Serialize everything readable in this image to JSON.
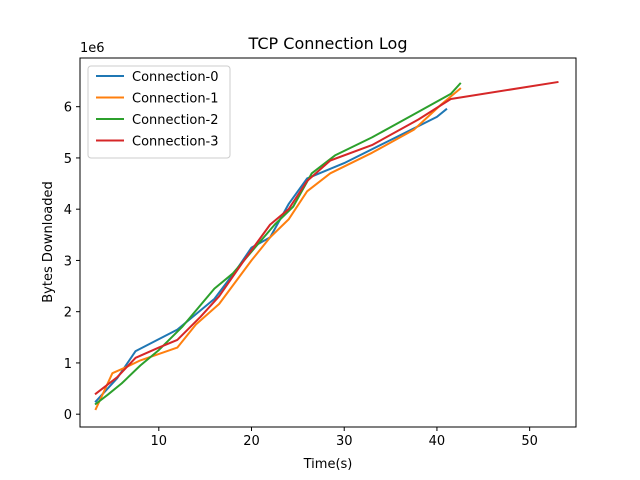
{
  "chart_data": {
    "type": "line",
    "title": "TCP Connection Log",
    "xlabel": "Time(s)",
    "ylabel": "Bytes Downloaded",
    "y_offset_label": "1e6",
    "xlim": [
      1.5,
      55
    ],
    "ylim": [
      -0.25,
      6.95
    ],
    "x_ticks": [
      10,
      20,
      30,
      40,
      50
    ],
    "y_ticks": [
      0,
      1,
      2,
      3,
      4,
      5,
      6
    ],
    "grid": false,
    "legend_position": "top-left",
    "series": [
      {
        "name": "Connection-0",
        "color": "#1f77b4",
        "points": [
          [
            3.2,
            0.25
          ],
          [
            5.5,
            0.7
          ],
          [
            7.5,
            1.23
          ],
          [
            12.0,
            1.65
          ],
          [
            16.0,
            2.25
          ],
          [
            18.5,
            2.85
          ],
          [
            20.0,
            3.25
          ],
          [
            22.0,
            3.45
          ],
          [
            24.0,
            4.1
          ],
          [
            26.0,
            4.6
          ],
          [
            30.0,
            4.9
          ],
          [
            35.0,
            5.35
          ],
          [
            40.0,
            5.8
          ],
          [
            41.0,
            5.95
          ]
        ]
      },
      {
        "name": "Connection-1",
        "color": "#ff7f0e",
        "points": [
          [
            3.2,
            0.1
          ],
          [
            5.0,
            0.8
          ],
          [
            6.5,
            0.92
          ],
          [
            8.0,
            1.05
          ],
          [
            12.0,
            1.3
          ],
          [
            14.0,
            1.75
          ],
          [
            16.5,
            2.15
          ],
          [
            20.0,
            3.0
          ],
          [
            22.0,
            3.45
          ],
          [
            24.0,
            3.8
          ],
          [
            26.0,
            4.35
          ],
          [
            28.5,
            4.7
          ],
          [
            33.0,
            5.1
          ],
          [
            37.5,
            5.55
          ],
          [
            40.5,
            6.05
          ],
          [
            42.5,
            6.35
          ]
        ]
      },
      {
        "name": "Connection-2",
        "color": "#2ca02c",
        "points": [
          [
            3.2,
            0.2
          ],
          [
            4.5,
            0.38
          ],
          [
            6.0,
            0.6
          ],
          [
            8.0,
            0.95
          ],
          [
            10.0,
            1.25
          ],
          [
            12.5,
            1.7
          ],
          [
            16.0,
            2.45
          ],
          [
            18.0,
            2.75
          ],
          [
            22.5,
            3.7
          ],
          [
            24.5,
            4.05
          ],
          [
            26.5,
            4.7
          ],
          [
            29.0,
            5.05
          ],
          [
            33.0,
            5.4
          ],
          [
            37.5,
            5.85
          ],
          [
            41.5,
            6.25
          ],
          [
            42.5,
            6.45
          ]
        ]
      },
      {
        "name": "Connection-3",
        "color": "#d62728",
        "points": [
          [
            3.2,
            0.4
          ],
          [
            5.5,
            0.72
          ],
          [
            7.5,
            1.1
          ],
          [
            10.0,
            1.3
          ],
          [
            12.0,
            1.45
          ],
          [
            14.5,
            1.9
          ],
          [
            16.5,
            2.3
          ],
          [
            19.0,
            2.95
          ],
          [
            22.0,
            3.7
          ],
          [
            24.0,
            4.0
          ],
          [
            26.0,
            4.55
          ],
          [
            28.5,
            4.95
          ],
          [
            33.0,
            5.25
          ],
          [
            38.0,
            5.75
          ],
          [
            41.5,
            6.15
          ],
          [
            53.0,
            6.48
          ]
        ]
      }
    ]
  }
}
